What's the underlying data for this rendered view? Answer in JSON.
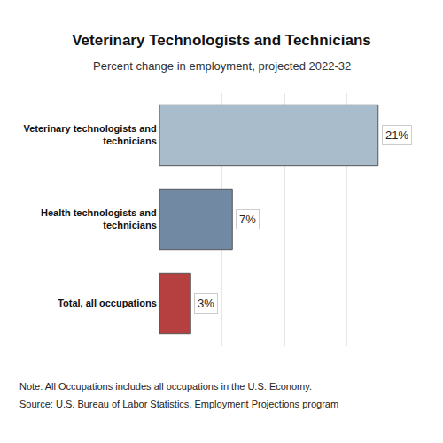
{
  "chart_data": {
    "type": "bar",
    "orientation": "horizontal",
    "title": "Veterinary Technologists and Technicians",
    "subtitle": "Percent change in employment, projected 2022-32",
    "categories": [
      "Veterinary technologists and technicians",
      "Health technologists and technicians",
      "Total, all occupations"
    ],
    "values": [
      21,
      7,
      3
    ],
    "value_labels": [
      "21%",
      "7%",
      "3%"
    ],
    "colors": [
      "#a9bccc",
      "#7189a3",
      "#b5403f"
    ],
    "data_labels": true,
    "xlim": [
      0,
      24
    ],
    "xticks": [
      0,
      6,
      12,
      18,
      24
    ],
    "grid": true,
    "tick_labels": "y",
    "annotations": [
      "Note: All Occupations includes all occupations in the U.S. Economy.",
      "Source: U.S. Bureau of Labor Statistics, Employment Projections program"
    ]
  }
}
